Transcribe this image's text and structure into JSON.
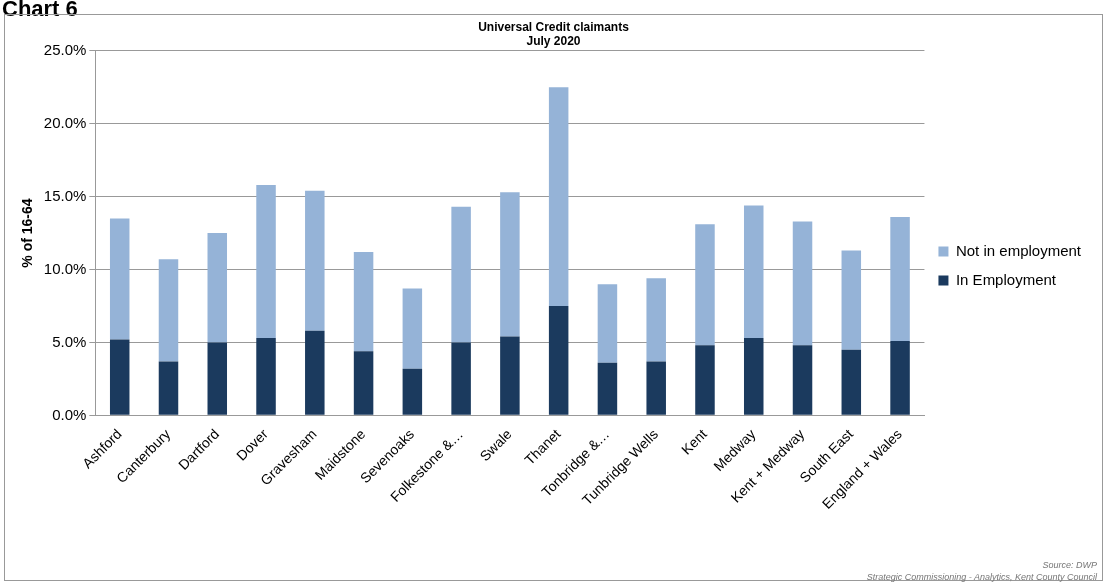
{
  "chart_data": {
    "type": "bar",
    "title": "Universal Credit claimants",
    "subtitle": "July 2020",
    "ylabel": "% of 16-64",
    "categories": [
      "Ashford",
      "Canterbury",
      "Dartford",
      "Dover",
      "Gravesham",
      "Maidstone",
      "Sevenoaks",
      "Folkestone &…",
      "Swale",
      "Thanet",
      "Tonbridge &…",
      "Tunbridge Wells",
      "Kent",
      "Medway",
      "Kent + Medway",
      "South East",
      "England + Wales"
    ],
    "series": [
      {
        "name": "In Employment",
        "color": "#1b3a5e",
        "values": [
          5.2,
          3.7,
          5.0,
          5.3,
          5.8,
          4.4,
          3.2,
          5.0,
          5.4,
          7.5,
          3.6,
          3.7,
          4.8,
          5.3,
          4.8,
          4.5,
          5.1
        ]
      },
      {
        "name": "Not in employment",
        "color": "#95b3d7",
        "values": [
          8.3,
          7.0,
          7.5,
          10.5,
          9.6,
          6.8,
          5.5,
          9.3,
          9.9,
          15.0,
          5.4,
          5.7,
          8.3,
          9.1,
          8.5,
          6.8,
          8.5
        ]
      }
    ],
    "stacked": true,
    "ylim": [
      0,
      25
    ],
    "yticks": [
      {
        "value": 0,
        "label": "0.0%"
      },
      {
        "value": 5,
        "label": "5.0%"
      },
      {
        "value": 10,
        "label": "10.0%"
      },
      {
        "value": 15,
        "label": "15.0%"
      },
      {
        "value": 20,
        "label": "20.0%"
      },
      {
        "value": 25,
        "label": "25.0%"
      }
    ],
    "grid": "y",
    "legend": "right",
    "annotations": [
      "Chart 6",
      "Source: DWP",
      "Strategic Commissioning - Analytics, Kent County Council"
    ]
  }
}
